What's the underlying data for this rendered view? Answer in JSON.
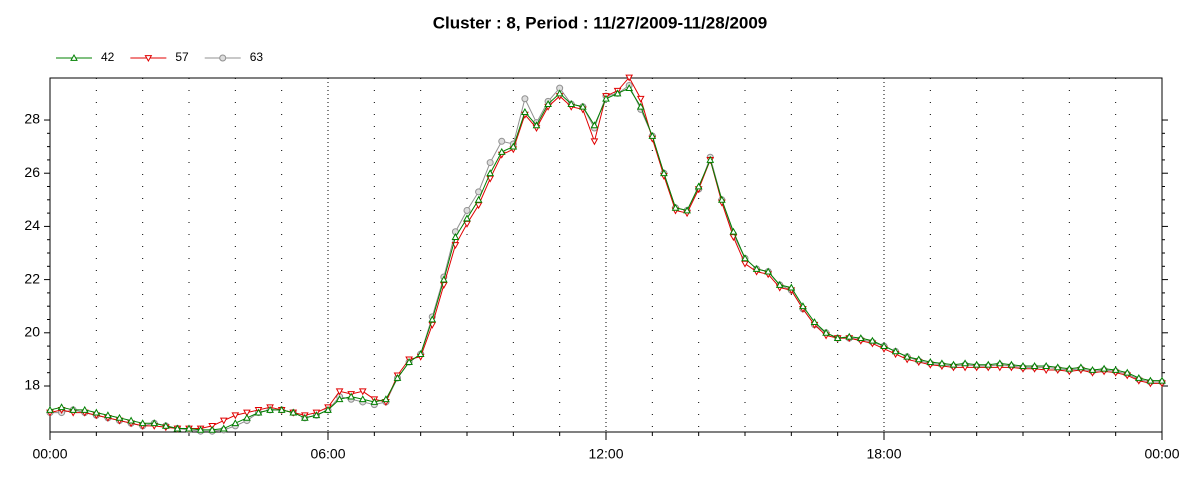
{
  "chart_data": {
    "type": "line",
    "title": "Cluster : 8, Period : 11/27/2009-11/28/2009",
    "legend": "top-left",
    "grid": true,
    "xlim": [
      0,
      24
    ],
    "xticks": [
      {
        "value": 0,
        "label": "00:00"
      },
      {
        "value": 6,
        "label": "06:00"
      },
      {
        "value": 12,
        "label": "12:00"
      },
      {
        "value": 18,
        "label": "18:00"
      },
      {
        "value": 24,
        "label": "00:00"
      }
    ],
    "ylim": [
      16.27,
      29.58
    ],
    "yticks": [
      18,
      20,
      22,
      24,
      26,
      28
    ],
    "x": [
      0,
      0.25,
      0.5,
      0.75,
      1,
      1.25,
      1.5,
      1.75,
      2,
      2.25,
      2.5,
      2.75,
      3,
      3.25,
      3.5,
      3.75,
      4,
      4.25,
      4.5,
      4.75,
      5,
      5.25,
      5.5,
      5.75,
      6,
      6.25,
      6.5,
      6.75,
      7,
      7.25,
      7.5,
      7.75,
      8,
      8.25,
      8.5,
      8.75,
      9,
      9.25,
      9.5,
      9.75,
      10,
      10.25,
      10.5,
      10.75,
      11,
      11.25,
      11.5,
      11.75,
      12,
      12.25,
      12.5,
      12.75,
      13,
      13.25,
      13.5,
      13.75,
      14,
      14.25,
      14.5,
      14.75,
      15,
      15.25,
      15.5,
      15.75,
      16,
      16.25,
      16.5,
      16.75,
      17,
      17.25,
      17.5,
      17.75,
      18,
      18.25,
      18.5,
      18.75,
      19,
      19.25,
      19.5,
      19.75,
      20,
      20.25,
      20.5,
      20.75,
      21,
      21.25,
      21.5,
      21.75,
      22,
      22.25,
      22.5,
      22.75,
      23,
      23.25,
      23.5,
      23.75,
      24
    ],
    "series": [
      {
        "name": "42",
        "color": "#008000",
        "marker": "triangle-up",
        "values": [
          17.1,
          17.2,
          17.1,
          17.1,
          17.0,
          16.9,
          16.8,
          16.7,
          16.6,
          16.6,
          16.5,
          16.4,
          16.4,
          16.35,
          16.35,
          16.4,
          16.6,
          16.8,
          17.0,
          17.1,
          17.1,
          17.0,
          16.8,
          16.9,
          17.1,
          17.5,
          17.6,
          17.5,
          17.4,
          17.5,
          18.3,
          18.9,
          19.2,
          20.5,
          22.0,
          23.6,
          24.3,
          25.0,
          26.0,
          26.8,
          27.0,
          28.3,
          27.8,
          28.6,
          29.0,
          28.6,
          28.5,
          27.8,
          28.8,
          29.0,
          29.2,
          28.5,
          27.4,
          26.0,
          24.7,
          24.6,
          25.5,
          26.5,
          25.0,
          23.8,
          22.8,
          22.4,
          22.3,
          21.8,
          21.7,
          21.0,
          20.4,
          20.0,
          19.8,
          19.85,
          19.8,
          19.7,
          19.5,
          19.3,
          19.1,
          19.0,
          18.9,
          18.85,
          18.8,
          18.85,
          18.8,
          18.8,
          18.85,
          18.8,
          18.75,
          18.75,
          18.75,
          18.7,
          18.65,
          18.7,
          18.6,
          18.65,
          18.6,
          18.5,
          18.3,
          18.2,
          18.2
        ]
      },
      {
        "name": "57",
        "color": "#e00000",
        "marker": "triangle-down",
        "values": [
          17.0,
          17.1,
          17.0,
          17.0,
          16.9,
          16.8,
          16.7,
          16.6,
          16.5,
          16.5,
          16.45,
          16.4,
          16.4,
          16.4,
          16.5,
          16.7,
          16.9,
          17.0,
          17.1,
          17.2,
          17.1,
          17.0,
          16.9,
          17.0,
          17.2,
          17.8,
          17.7,
          17.8,
          17.5,
          17.4,
          18.4,
          19.0,
          19.1,
          20.3,
          21.8,
          23.3,
          24.1,
          24.8,
          25.8,
          26.7,
          26.9,
          28.2,
          27.7,
          28.5,
          28.9,
          28.5,
          28.4,
          27.2,
          28.9,
          29.1,
          29.6,
          28.8,
          27.3,
          25.9,
          24.6,
          24.5,
          25.4,
          26.5,
          24.9,
          23.6,
          22.6,
          22.3,
          22.2,
          21.7,
          21.6,
          20.9,
          20.3,
          19.9,
          19.8,
          19.8,
          19.7,
          19.6,
          19.4,
          19.2,
          19.0,
          18.9,
          18.8,
          18.75,
          18.7,
          18.7,
          18.7,
          18.7,
          18.7,
          18.7,
          18.65,
          18.65,
          18.6,
          18.6,
          18.55,
          18.6,
          18.5,
          18.55,
          18.5,
          18.4,
          18.2,
          18.1,
          18.1
        ]
      },
      {
        "name": "63",
        "color": "#909090",
        "marker": "circle",
        "values": [
          17.0,
          17.0,
          17.1,
          17.0,
          16.9,
          16.8,
          16.7,
          16.6,
          16.5,
          16.6,
          16.5,
          16.4,
          16.35,
          16.3,
          16.3,
          16.35,
          16.5,
          16.7,
          17.0,
          17.1,
          17.1,
          17.0,
          16.8,
          16.9,
          17.1,
          17.6,
          17.5,
          17.4,
          17.3,
          17.4,
          18.3,
          18.9,
          19.2,
          20.6,
          22.1,
          23.8,
          24.6,
          25.3,
          26.4,
          27.2,
          27.1,
          28.8,
          27.9,
          28.7,
          29.2,
          28.6,
          28.5,
          27.7,
          28.9,
          29.0,
          29.3,
          28.4,
          27.4,
          26.0,
          24.7,
          24.6,
          25.4,
          26.6,
          25.0,
          23.7,
          22.8,
          22.4,
          22.3,
          21.8,
          21.6,
          20.9,
          20.3,
          20.0,
          19.8,
          19.8,
          19.75,
          19.65,
          19.5,
          19.3,
          19.1,
          18.95,
          18.85,
          18.8,
          18.75,
          18.8,
          18.75,
          18.75,
          18.8,
          18.75,
          18.7,
          18.7,
          18.7,
          18.65,
          18.6,
          18.65,
          18.55,
          18.6,
          18.55,
          18.45,
          18.25,
          18.15,
          18.15
        ]
      }
    ]
  }
}
